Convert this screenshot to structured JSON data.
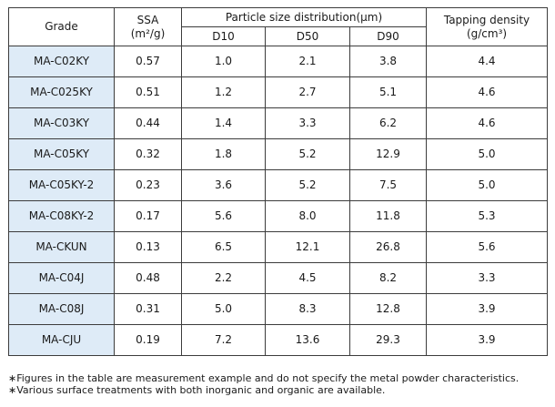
{
  "header": {
    "grade": "Grade",
    "ssa_label": "SSA",
    "ssa_unit": "(m²/g)",
    "psd_label": "Particle size distribution(μm)",
    "d10": "D10",
    "d50": "D50",
    "d90": "D90",
    "tap_label": "Tapping density",
    "tap_unit": "(g/cm³)"
  },
  "rows": [
    {
      "grade": "MA-C02KY",
      "ssa": "0.57",
      "d10": "1.0",
      "d50": "2.1",
      "d90": "3.8",
      "tap": "4.4"
    },
    {
      "grade": "MA-C025KY",
      "ssa": "0.51",
      "d10": "1.2",
      "d50": "2.7",
      "d90": "5.1",
      "tap": "4.6"
    },
    {
      "grade": "MA-C03KY",
      "ssa": "0.44",
      "d10": "1.4",
      "d50": "3.3",
      "d90": "6.2",
      "tap": "4.6"
    },
    {
      "grade": "MA-C05KY",
      "ssa": "0.32",
      "d10": "1.8",
      "d50": "5.2",
      "d90": "12.9",
      "tap": "5.0"
    },
    {
      "grade": "MA-C05KY-2",
      "ssa": "0.23",
      "d10": "3.6",
      "d50": "5.2",
      "d90": "7.5",
      "tap": "5.0"
    },
    {
      "grade": "MA-C08KY-2",
      "ssa": "0.17",
      "d10": "5.6",
      "d50": "8.0",
      "d90": "11.8",
      "tap": "5.3"
    },
    {
      "grade": "MA-CKUN",
      "ssa": "0.13",
      "d10": "6.5",
      "d50": "12.1",
      "d90": "26.8",
      "tap": "5.6"
    },
    {
      "grade": "MA-C04J",
      "ssa": "0.48",
      "d10": "2.2",
      "d50": "4.5",
      "d90": "8.2",
      "tap": "3.3"
    },
    {
      "grade": "MA-C08J",
      "ssa": "0.31",
      "d10": "5.0",
      "d50": "8.3",
      "d90": "12.8",
      "tap": "3.9"
    },
    {
      "grade": "MA-CJU",
      "ssa": "0.19",
      "d10": "7.2",
      "d50": "13.6",
      "d90": "29.3",
      "tap": "3.9"
    }
  ],
  "notes": [
    "∗Figures in the table are measurement example and do not specify the metal powder characteristics.",
    "∗Various surface treatments with both inorganic and organic are available."
  ],
  "colors": {
    "grade_cell_bg": "#deebf7",
    "border": "#3c3c3c"
  }
}
